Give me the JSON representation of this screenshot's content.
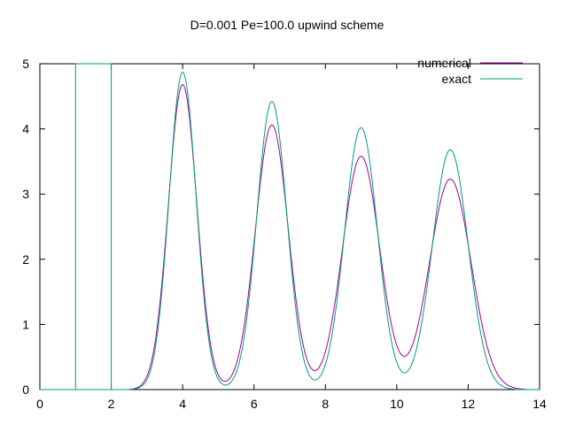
{
  "chart_data": {
    "type": "line",
    "title": "D=0.001 Pe=100.0 upwind scheme",
    "xlabel": "",
    "ylabel": "",
    "xlim": [
      0,
      14
    ],
    "ylim": [
      0,
      5
    ],
    "xticks": [
      0,
      2,
      4,
      6,
      8,
      10,
      12,
      14
    ],
    "yticks": [
      0,
      1,
      2,
      3,
      4,
      5
    ],
    "grid": false,
    "legend_position": "top-right",
    "series": [
      {
        "name": "numerical",
        "color": "#a000a0",
        "peaks": [
          {
            "center": 4.0,
            "height": 4.68,
            "sigma": 0.4
          },
          {
            "center": 6.5,
            "height": 4.06,
            "sigma": 0.46
          },
          {
            "center": 9.0,
            "height": 3.58,
            "sigma": 0.52
          },
          {
            "center": 11.5,
            "height": 3.23,
            "sigma": 0.58
          }
        ]
      },
      {
        "name": "exact",
        "color": "#009e73",
        "pulse": {
          "x_start": 1.0,
          "x_end": 2.0,
          "height": 5.0
        },
        "peaks": [
          {
            "center": 4.0,
            "height": 4.87,
            "sigma": 0.38
          },
          {
            "center": 6.5,
            "height": 4.42,
            "sigma": 0.42
          },
          {
            "center": 9.0,
            "height": 4.02,
            "sigma": 0.46
          },
          {
            "center": 11.5,
            "height": 3.68,
            "sigma": 0.5
          }
        ]
      }
    ]
  }
}
